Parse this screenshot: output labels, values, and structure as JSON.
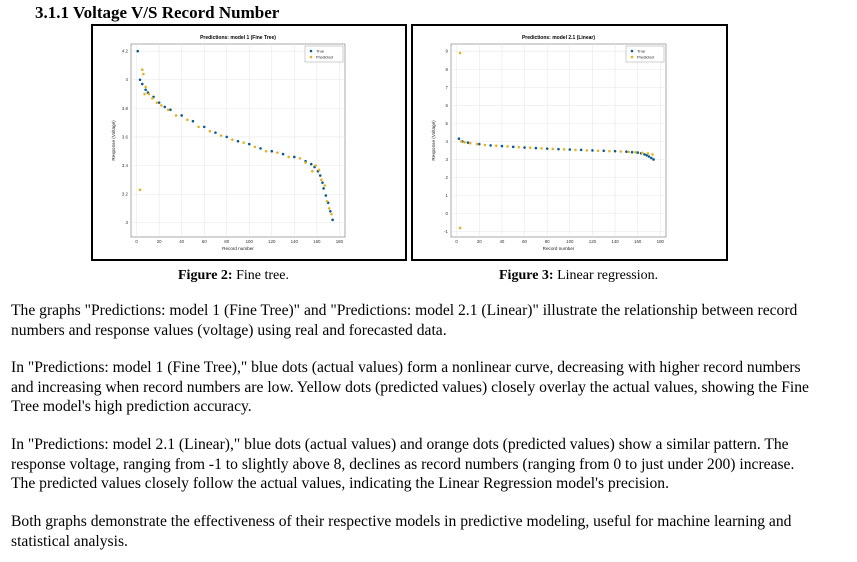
{
  "section_heading": "3.1.1 Voltage V/S Record Number",
  "figures": [
    {
      "caption_label": "Figure 2:",
      "caption_text": " Fine tree.",
      "chart_data": {
        "type": "scatter",
        "title": "Predictions: model 1 (Fine Tree)",
        "xlabel": "Record number",
        "ylabel": "Response (Voltage)",
        "xlim": [
          -5,
          185
        ],
        "ylim": [
          2.9,
          4.25
        ],
        "xticks": [
          0,
          20,
          40,
          60,
          80,
          100,
          120,
          140,
          160,
          180
        ],
        "yticks": [
          3,
          3.2,
          3.4,
          3.6,
          3.8,
          4,
          4.2
        ],
        "legend": [
          "True",
          "Predicted"
        ],
        "legend_position": "top-right",
        "grid": true,
        "colors": {
          "true": "#0b5a8e",
          "predicted": "#e5b21f"
        },
        "series": [
          {
            "name": "True",
            "x": [
              1,
              3,
              5,
              8,
              10,
              15,
              20,
              25,
              30,
              40,
              50,
              60,
              70,
              80,
              90,
              100,
              110,
              120,
              130,
              140,
              150,
              155,
              158,
              161,
              163,
              165,
              166,
              168,
              170,
              172,
              174
            ],
            "y": [
              4.2,
              4.0,
              3.97,
              3.93,
              3.91,
              3.88,
              3.84,
              3.81,
              3.79,
              3.75,
              3.71,
              3.67,
              3.63,
              3.6,
              3.57,
              3.55,
              3.52,
              3.5,
              3.48,
              3.46,
              3.43,
              3.41,
              3.39,
              3.36,
              3.33,
              3.28,
              3.24,
              3.19,
              3.14,
              3.08,
              3.02
            ]
          },
          {
            "name": "Predicted",
            "x": [
              3,
              5,
              6,
              7,
              8,
              11,
              14,
              18,
              22,
              28,
              35,
              45,
              55,
              65,
              75,
              85,
              95,
              105,
              115,
              125,
              135,
              145,
              150,
              156,
              159,
              162,
              164,
              167,
              169,
              171,
              173
            ],
            "y": [
              3.23,
              4.07,
              4.04,
              3.9,
              3.95,
              3.9,
              3.87,
              3.84,
              3.82,
              3.79,
              3.75,
              3.72,
              3.67,
              3.64,
              3.61,
              3.58,
              3.56,
              3.53,
              3.5,
              3.49,
              3.46,
              3.45,
              3.42,
              3.36,
              3.4,
              3.37,
              3.3,
              3.26,
              3.15,
              3.1,
              3.06
            ]
          }
        ]
      }
    },
    {
      "caption_label": "Figure 3:",
      "caption_text": " Linear regression.",
      "chart_data": {
        "type": "scatter",
        "title": "Predictions: model 2.1 (Linear)",
        "xlabel": "Record number",
        "ylabel": "Response (Voltage)",
        "xlim": [
          -5,
          185
        ],
        "ylim": [
          -1.3,
          9.4
        ],
        "xticks": [
          0,
          20,
          40,
          60,
          80,
          100,
          120,
          140,
          160,
          180
        ],
        "yticks": [
          -1,
          0,
          1,
          2,
          3,
          4,
          5,
          6,
          7,
          8,
          9
        ],
        "legend": [
          "True",
          "Predicted"
        ],
        "legend_position": "top-right",
        "grid": true,
        "colors": {
          "true": "#0b5a8e",
          "predicted": "#e5b21f"
        },
        "series": [
          {
            "name": "True",
            "x": [
              2,
              5,
              10,
              20,
              30,
              40,
              50,
              60,
              70,
              80,
              90,
              100,
              110,
              120,
              130,
              140,
              150,
              155,
              160,
              163,
              166,
              168,
              170,
              172,
              174
            ],
            "y": [
              4.15,
              4.0,
              3.93,
              3.85,
              3.78,
              3.74,
              3.7,
              3.66,
              3.63,
              3.6,
              3.57,
              3.55,
              3.53,
              3.5,
              3.48,
              3.46,
              3.43,
              3.4,
              3.38,
              3.34,
              3.28,
              3.23,
              3.16,
              3.08,
              3.0
            ]
          },
          {
            "name": "Predicted",
            "x": [
              3,
              3,
              4,
              7,
              12,
              18,
              25,
              35,
              45,
              55,
              65,
              75,
              85,
              95,
              105,
              115,
              125,
              135,
              145,
              152,
              158,
              164,
              169,
              173
            ],
            "y": [
              8.9,
              -0.8,
              4.0,
              3.95,
              3.9,
              3.85,
              3.8,
              3.76,
              3.72,
              3.68,
              3.65,
              3.61,
              3.58,
              3.56,
              3.53,
              3.5,
              3.48,
              3.46,
              3.44,
              3.42,
              3.4,
              3.37,
              3.33,
              3.28
            ]
          }
        ]
      }
    }
  ],
  "paragraphs": [
    "The graphs \"Predictions: model 1 (Fine Tree)\" and \"Predictions: model 2.1 (Linear)\" illustrate the relationship between record numbers and response values (voltage) using real and forecasted data.",
    "In \"Predictions: model 1 (Fine Tree),\" blue dots (actual values) form a nonlinear curve, decreasing with higher record numbers and increasing when record numbers are low. Yellow dots (predicted values) closely overlay the actual values, showing the Fine Tree model's high prediction accuracy.",
    "In \"Predictions: model 2.1 (Linear),\" blue dots (actual values) and orange dots (predicted values) show a similar pattern. The response voltage, ranging from -1 to slightly above 8, declines as record numbers (ranging from 0 to just under 200) increase. The predicted values closely follow the actual values, indicating the Linear Regression model's precision.",
    "Both graphs demonstrate the effectiveness of their respective models in predictive modeling, useful for machine learning and statistical analysis."
  ]
}
